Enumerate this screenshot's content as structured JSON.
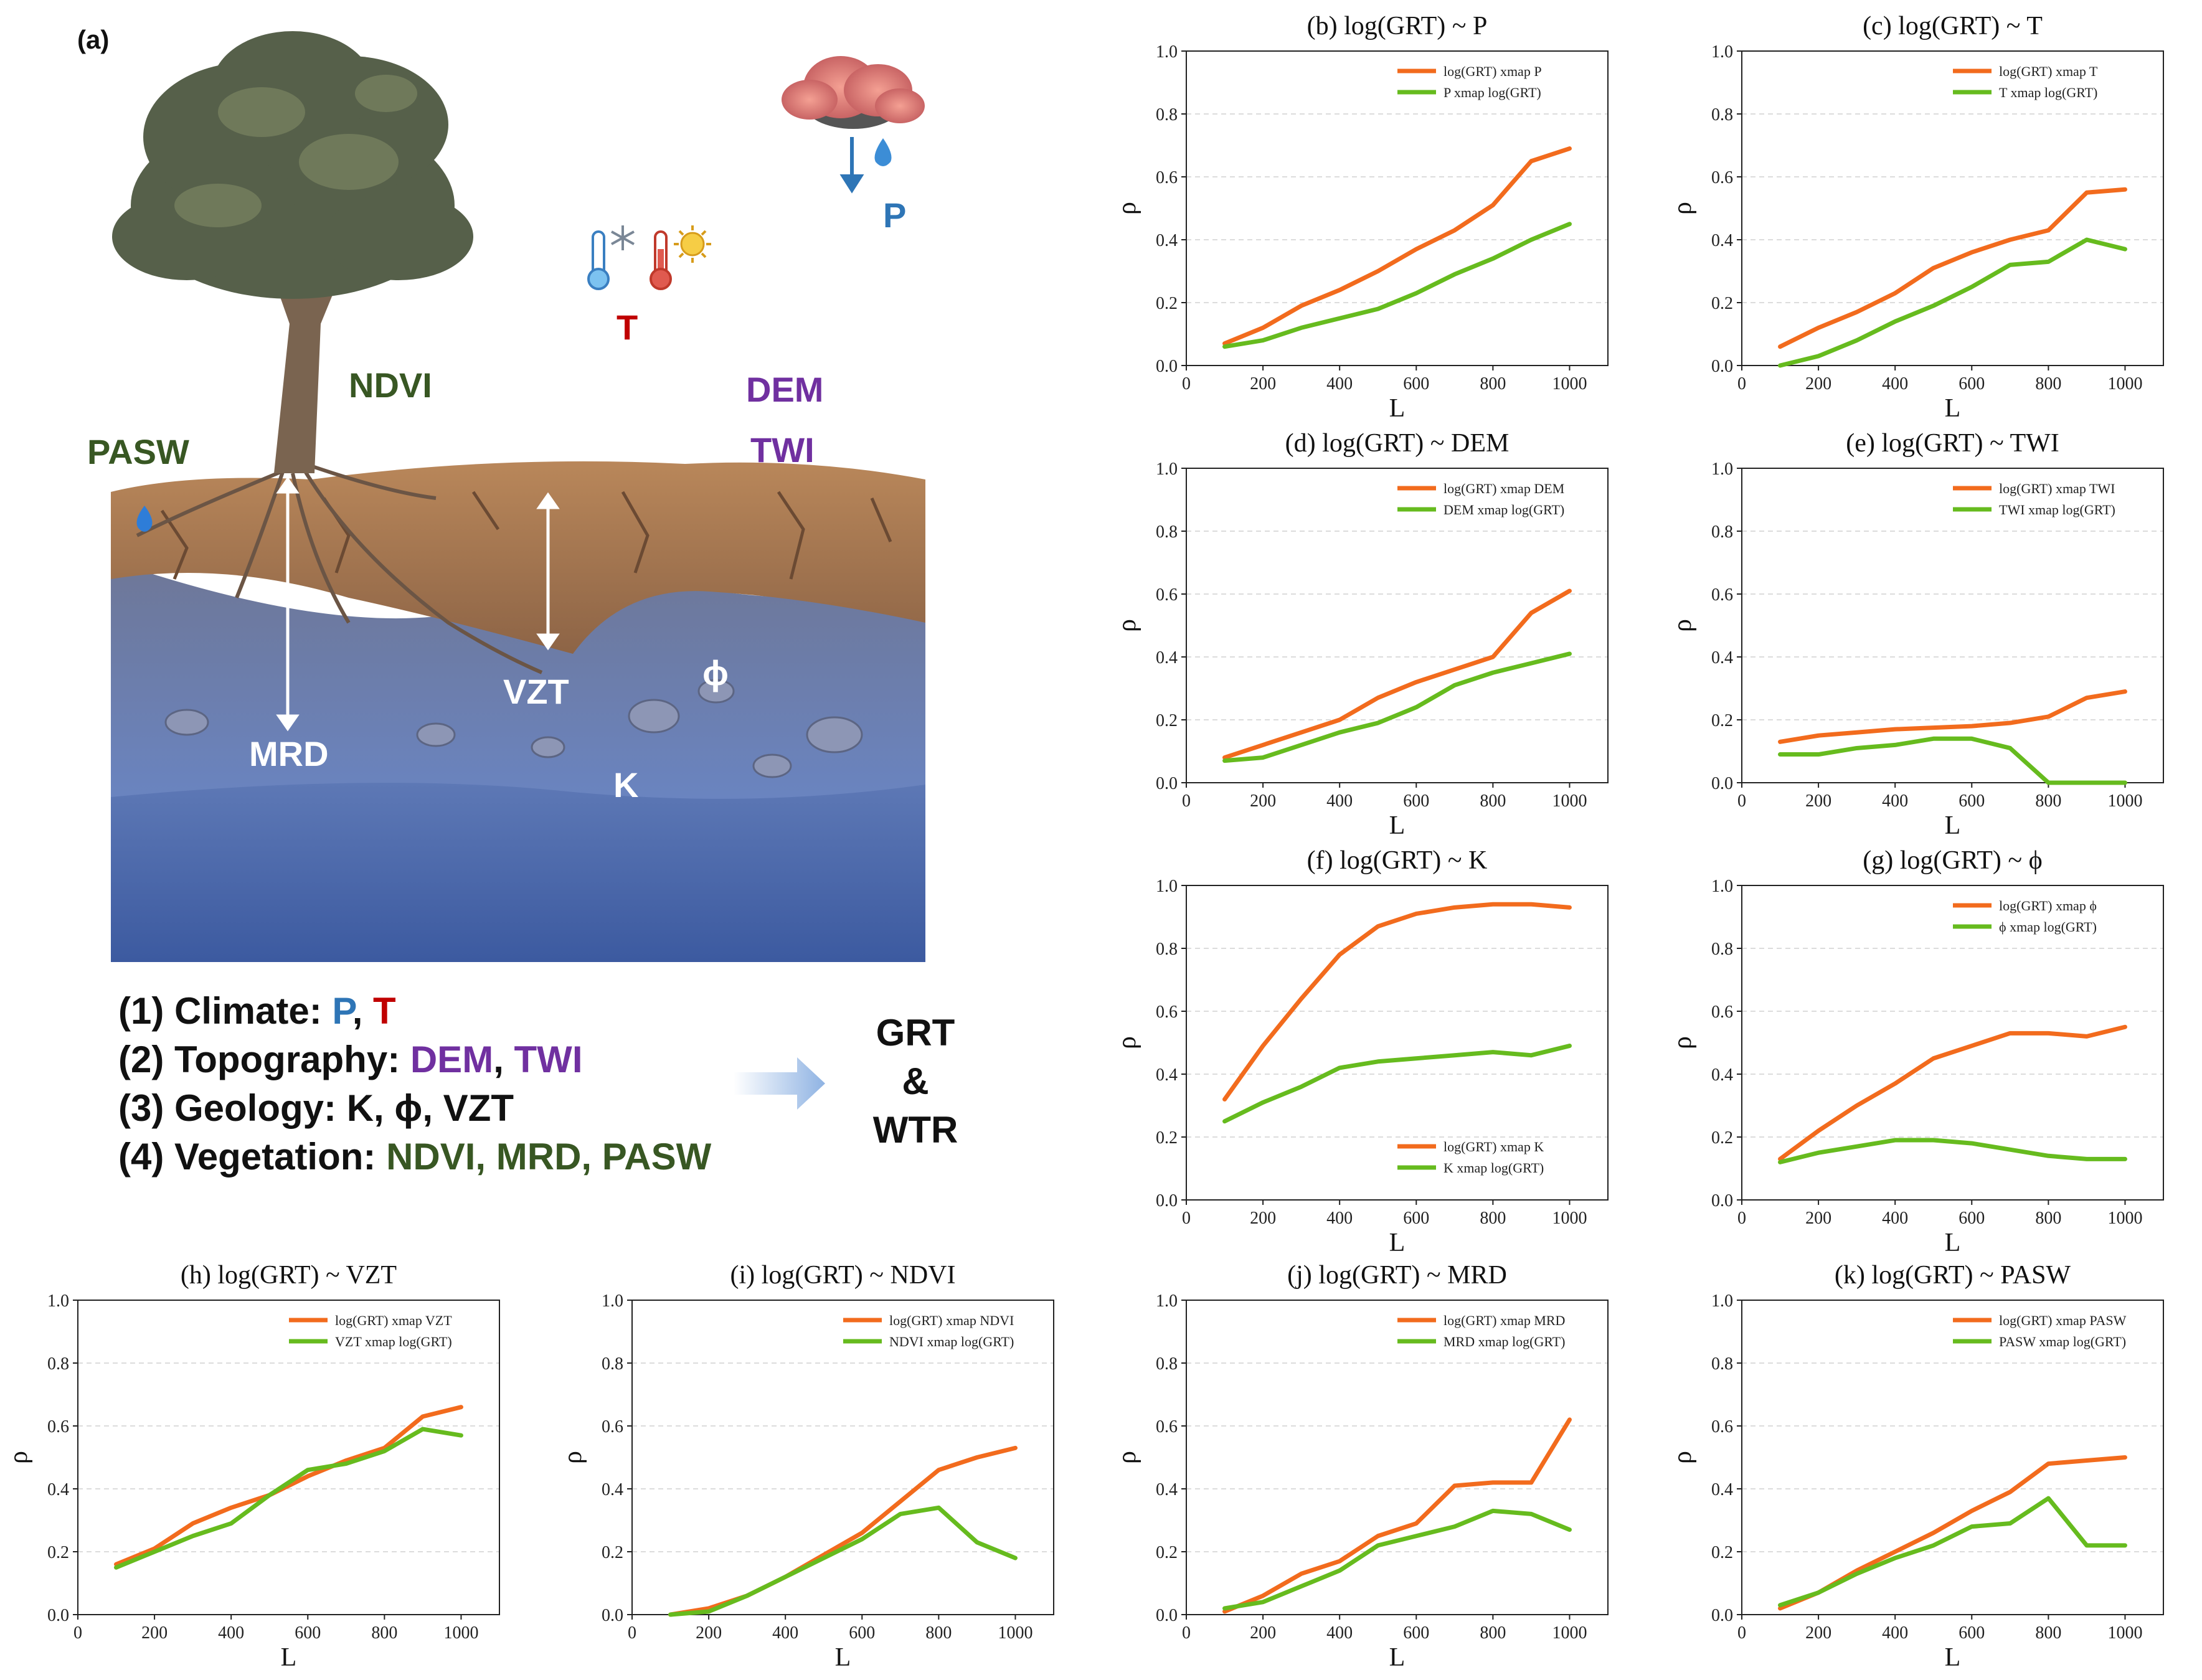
{
  "panel_a": {
    "label": "(a)",
    "labels": {
      "p": "P",
      "t": "T",
      "ndvi": "NDVI",
      "pasw": "PASW",
      "dem": "DEM",
      "twi": "TWI",
      "vzt": "VZT",
      "phi": "ϕ",
      "mrd": "MRD",
      "k": "K"
    },
    "factors": [
      {
        "prefix": "(1) Climate: ",
        "parts": [
          {
            "text": "P",
            "color": "#2e75b6"
          },
          {
            "text": ", ",
            "color": "#111111"
          },
          {
            "text": "T",
            "color": "#c00000"
          }
        ]
      },
      {
        "prefix": "(2) Topography: ",
        "parts": [
          {
            "text": "DEM",
            "color": "#7030a0"
          },
          {
            "text": ", ",
            "color": "#111111"
          },
          {
            "text": "TWI",
            "color": "#7030a0"
          }
        ]
      },
      {
        "prefix": "(3) Geology: ",
        "parts": [
          {
            "text": "K, ϕ, VZT",
            "color": "#111111"
          }
        ]
      },
      {
        "prefix": "(4) Vegetation: ",
        "parts": [
          {
            "text": "NDVI, MRD, PASW",
            "color": "#385723"
          }
        ]
      }
    ],
    "outcome": [
      "GRT",
      "&",
      "WTR"
    ],
    "colors": {
      "p": "#2e75b6",
      "t": "#c00000",
      "topo": "#7030a0",
      "veg": "#385723",
      "text": "#111111"
    }
  },
  "chart_data": [
    {
      "id": "b",
      "type": "line",
      "title": "(b) log(GRT) ~ P",
      "xlabel": "L",
      "ylabel": "ρ",
      "xlim": [
        0,
        1100
      ],
      "ylim": [
        0,
        1.0
      ],
      "xticks": [
        0,
        200,
        400,
        600,
        800,
        1000
      ],
      "yticks": [
        0.0,
        0.2,
        0.4,
        0.6,
        0.8,
        1.0
      ],
      "legend": "top-right",
      "grid": "y",
      "x": [
        100,
        200,
        300,
        400,
        500,
        600,
        700,
        800,
        900,
        1000
      ],
      "series": [
        {
          "name": "log(GRT) xmap P",
          "color": "#f26b1d",
          "values": [
            0.07,
            0.12,
            0.19,
            0.24,
            0.3,
            0.37,
            0.43,
            0.51,
            0.65,
            0.69
          ]
        },
        {
          "name": "P xmap log(GRT)",
          "color": "#66bb1e",
          "values": [
            0.06,
            0.08,
            0.12,
            0.15,
            0.18,
            0.23,
            0.29,
            0.34,
            0.4,
            0.45
          ]
        }
      ]
    },
    {
      "id": "c",
      "type": "line",
      "title": "(c) log(GRT) ~ T",
      "xlabel": "L",
      "ylabel": "ρ",
      "xlim": [
        0,
        1100
      ],
      "ylim": [
        0,
        1.0
      ],
      "xticks": [
        0,
        200,
        400,
        600,
        800,
        1000
      ],
      "yticks": [
        0.0,
        0.2,
        0.4,
        0.6,
        0.8,
        1.0
      ],
      "legend": "top-right",
      "grid": "y",
      "x": [
        100,
        200,
        300,
        400,
        500,
        600,
        700,
        800,
        900,
        1000
      ],
      "series": [
        {
          "name": "log(GRT) xmap T",
          "color": "#f26b1d",
          "values": [
            0.06,
            0.12,
            0.17,
            0.23,
            0.31,
            0.36,
            0.4,
            0.43,
            0.55,
            0.56
          ]
        },
        {
          "name": "T xmap log(GRT)",
          "color": "#66bb1e",
          "values": [
            0.0,
            0.03,
            0.08,
            0.14,
            0.19,
            0.25,
            0.32,
            0.33,
            0.4,
            0.37
          ]
        }
      ]
    },
    {
      "id": "d",
      "type": "line",
      "title": "(d) log(GRT) ~ DEM",
      "xlabel": "L",
      "ylabel": "ρ",
      "xlim": [
        0,
        1100
      ],
      "ylim": [
        0,
        1.0
      ],
      "xticks": [
        0,
        200,
        400,
        600,
        800,
        1000
      ],
      "yticks": [
        0.0,
        0.2,
        0.4,
        0.6,
        0.8,
        1.0
      ],
      "legend": "top-right",
      "grid": "y",
      "x": [
        100,
        200,
        300,
        400,
        500,
        600,
        700,
        800,
        900,
        1000
      ],
      "series": [
        {
          "name": "log(GRT) xmap DEM",
          "color": "#f26b1d",
          "values": [
            0.08,
            0.12,
            0.16,
            0.2,
            0.27,
            0.32,
            0.36,
            0.4,
            0.54,
            0.61
          ]
        },
        {
          "name": "DEM xmap log(GRT)",
          "color": "#66bb1e",
          "values": [
            0.07,
            0.08,
            0.12,
            0.16,
            0.19,
            0.24,
            0.31,
            0.35,
            0.38,
            0.41
          ]
        }
      ]
    },
    {
      "id": "e",
      "type": "line",
      "title": "(e) log(GRT) ~ TWI",
      "xlabel": "L",
      "ylabel": "ρ",
      "xlim": [
        0,
        1100
      ],
      "ylim": [
        0,
        1.0
      ],
      "xticks": [
        0,
        200,
        400,
        600,
        800,
        1000
      ],
      "yticks": [
        0.0,
        0.2,
        0.4,
        0.6,
        0.8,
        1.0
      ],
      "legend": "top-right",
      "grid": "y",
      "x": [
        100,
        200,
        300,
        400,
        500,
        600,
        700,
        800,
        900,
        1000
      ],
      "series": [
        {
          "name": "log(GRT) xmap TWI",
          "color": "#f26b1d",
          "values": [
            0.13,
            0.15,
            0.16,
            0.17,
            0.175,
            0.18,
            0.19,
            0.21,
            0.27,
            0.29
          ]
        },
        {
          "name": "TWI xmap log(GRT)",
          "color": "#66bb1e",
          "values": [
            0.09,
            0.09,
            0.11,
            0.12,
            0.14,
            0.14,
            0.11,
            0.0,
            0.0,
            0.0
          ]
        }
      ]
    },
    {
      "id": "f",
      "type": "line",
      "title": "(f) log(GRT) ~ K",
      "xlabel": "L",
      "ylabel": "ρ",
      "xlim": [
        0,
        1100
      ],
      "ylim": [
        0,
        1.0
      ],
      "xticks": [
        0,
        200,
        400,
        600,
        800,
        1000
      ],
      "yticks": [
        0.0,
        0.2,
        0.4,
        0.6,
        0.8,
        1.0
      ],
      "legend": "bottom-right",
      "grid": "y",
      "x": [
        100,
        200,
        300,
        400,
        500,
        600,
        700,
        800,
        900,
        1000
      ],
      "series": [
        {
          "name": "log(GRT) xmap K",
          "color": "#f26b1d",
          "values": [
            0.32,
            0.49,
            0.64,
            0.78,
            0.87,
            0.91,
            0.93,
            0.94,
            0.94,
            0.93
          ]
        },
        {
          "name": "K xmap log(GRT)",
          "color": "#66bb1e",
          "values": [
            0.25,
            0.31,
            0.36,
            0.42,
            0.44,
            0.45,
            0.46,
            0.47,
            0.46,
            0.49
          ]
        }
      ]
    },
    {
      "id": "g",
      "type": "line",
      "title": "(g) log(GRT) ~ ϕ",
      "xlabel": "L",
      "ylabel": "ρ",
      "xlim": [
        0,
        1100
      ],
      "ylim": [
        0,
        1.0
      ],
      "xticks": [
        0,
        200,
        400,
        600,
        800,
        1000
      ],
      "yticks": [
        0.0,
        0.2,
        0.4,
        0.6,
        0.8,
        1.0
      ],
      "legend": "top-right",
      "grid": "y",
      "x": [
        100,
        200,
        300,
        400,
        500,
        600,
        700,
        800,
        900,
        1000
      ],
      "series": [
        {
          "name": "log(GRT) xmap ϕ",
          "color": "#f26b1d",
          "values": [
            0.13,
            0.22,
            0.3,
            0.37,
            0.45,
            0.49,
            0.53,
            0.53,
            0.52,
            0.55
          ]
        },
        {
          "name": "ϕ xmap log(GRT)",
          "color": "#66bb1e",
          "values": [
            0.12,
            0.15,
            0.17,
            0.19,
            0.19,
            0.18,
            0.16,
            0.14,
            0.13,
            0.13
          ]
        }
      ]
    },
    {
      "id": "h",
      "type": "line",
      "title": "(h) log(GRT) ~ VZT",
      "xlabel": "L",
      "ylabel": "ρ",
      "xlim": [
        0,
        1100
      ],
      "ylim": [
        0,
        1.0
      ],
      "xticks": [
        0,
        200,
        400,
        600,
        800,
        1000
      ],
      "yticks": [
        0.0,
        0.2,
        0.4,
        0.6,
        0.8,
        1.0
      ],
      "legend": "top-right",
      "grid": "y",
      "x": [
        100,
        200,
        300,
        400,
        500,
        600,
        700,
        800,
        900,
        1000
      ],
      "series": [
        {
          "name": "log(GRT) xmap VZT",
          "color": "#f26b1d",
          "values": [
            0.16,
            0.21,
            0.29,
            0.34,
            0.38,
            0.44,
            0.49,
            0.53,
            0.63,
            0.66
          ]
        },
        {
          "name": "VZT xmap log(GRT)",
          "color": "#66bb1e",
          "values": [
            0.15,
            0.2,
            0.25,
            0.29,
            0.38,
            0.46,
            0.48,
            0.52,
            0.59,
            0.57
          ]
        }
      ]
    },
    {
      "id": "i",
      "type": "line",
      "title": "(i) log(GRT) ~ NDVI",
      "xlabel": "L",
      "ylabel": "ρ",
      "xlim": [
        0,
        1100
      ],
      "ylim": [
        0,
        1.0
      ],
      "xticks": [
        0,
        200,
        400,
        600,
        800,
        1000
      ],
      "yticks": [
        0.0,
        0.2,
        0.4,
        0.6,
        0.8,
        1.0
      ],
      "legend": "top-right",
      "grid": "y",
      "x": [
        100,
        200,
        300,
        400,
        500,
        600,
        700,
        800,
        900,
        1000
      ],
      "series": [
        {
          "name": "log(GRT) xmap NDVI",
          "color": "#f26b1d",
          "values": [
            0.0,
            0.02,
            0.06,
            0.12,
            0.19,
            0.26,
            0.36,
            0.46,
            0.5,
            0.53
          ]
        },
        {
          "name": "NDVI xmap log(GRT)",
          "color": "#66bb1e",
          "values": [
            0.0,
            0.01,
            0.06,
            0.12,
            0.18,
            0.24,
            0.32,
            0.34,
            0.23,
            0.18
          ]
        }
      ]
    },
    {
      "id": "j",
      "type": "line",
      "title": "(j) log(GRT) ~ MRD",
      "xlabel": "L",
      "ylabel": "ρ",
      "xlim": [
        0,
        1100
      ],
      "ylim": [
        0,
        1.0
      ],
      "xticks": [
        0,
        200,
        400,
        600,
        800,
        1000
      ],
      "yticks": [
        0.0,
        0.2,
        0.4,
        0.6,
        0.8,
        1.0
      ],
      "legend": "top-right",
      "grid": "y",
      "x": [
        100,
        200,
        300,
        400,
        500,
        600,
        700,
        800,
        900,
        1000
      ],
      "series": [
        {
          "name": "log(GRT) xmap MRD",
          "color": "#f26b1d",
          "values": [
            0.01,
            0.06,
            0.13,
            0.17,
            0.25,
            0.29,
            0.41,
            0.42,
            0.42,
            0.62
          ]
        },
        {
          "name": "MRD xmap log(GRT)",
          "color": "#66bb1e",
          "values": [
            0.02,
            0.04,
            0.09,
            0.14,
            0.22,
            0.25,
            0.28,
            0.33,
            0.32,
            0.27
          ]
        }
      ]
    },
    {
      "id": "k",
      "type": "line",
      "title": "(k) log(GRT) ~ PASW",
      "xlabel": "L",
      "ylabel": "ρ",
      "xlim": [
        0,
        1100
      ],
      "ylim": [
        0,
        1.0
      ],
      "xticks": [
        0,
        200,
        400,
        600,
        800,
        1000
      ],
      "yticks": [
        0.0,
        0.2,
        0.4,
        0.6,
        0.8,
        1.0
      ],
      "legend": "top-right",
      "grid": "y",
      "x": [
        100,
        200,
        300,
        400,
        500,
        600,
        700,
        800,
        900,
        1000
      ],
      "series": [
        {
          "name": "log(GRT) xmap PASW",
          "color": "#f26b1d",
          "values": [
            0.02,
            0.07,
            0.14,
            0.2,
            0.26,
            0.33,
            0.39,
            0.48,
            0.49,
            0.5
          ]
        },
        {
          "name": "PASW xmap log(GRT)",
          "color": "#66bb1e",
          "values": [
            0.03,
            0.07,
            0.13,
            0.18,
            0.22,
            0.28,
            0.29,
            0.37,
            0.22,
            0.22
          ]
        }
      ]
    }
  ]
}
